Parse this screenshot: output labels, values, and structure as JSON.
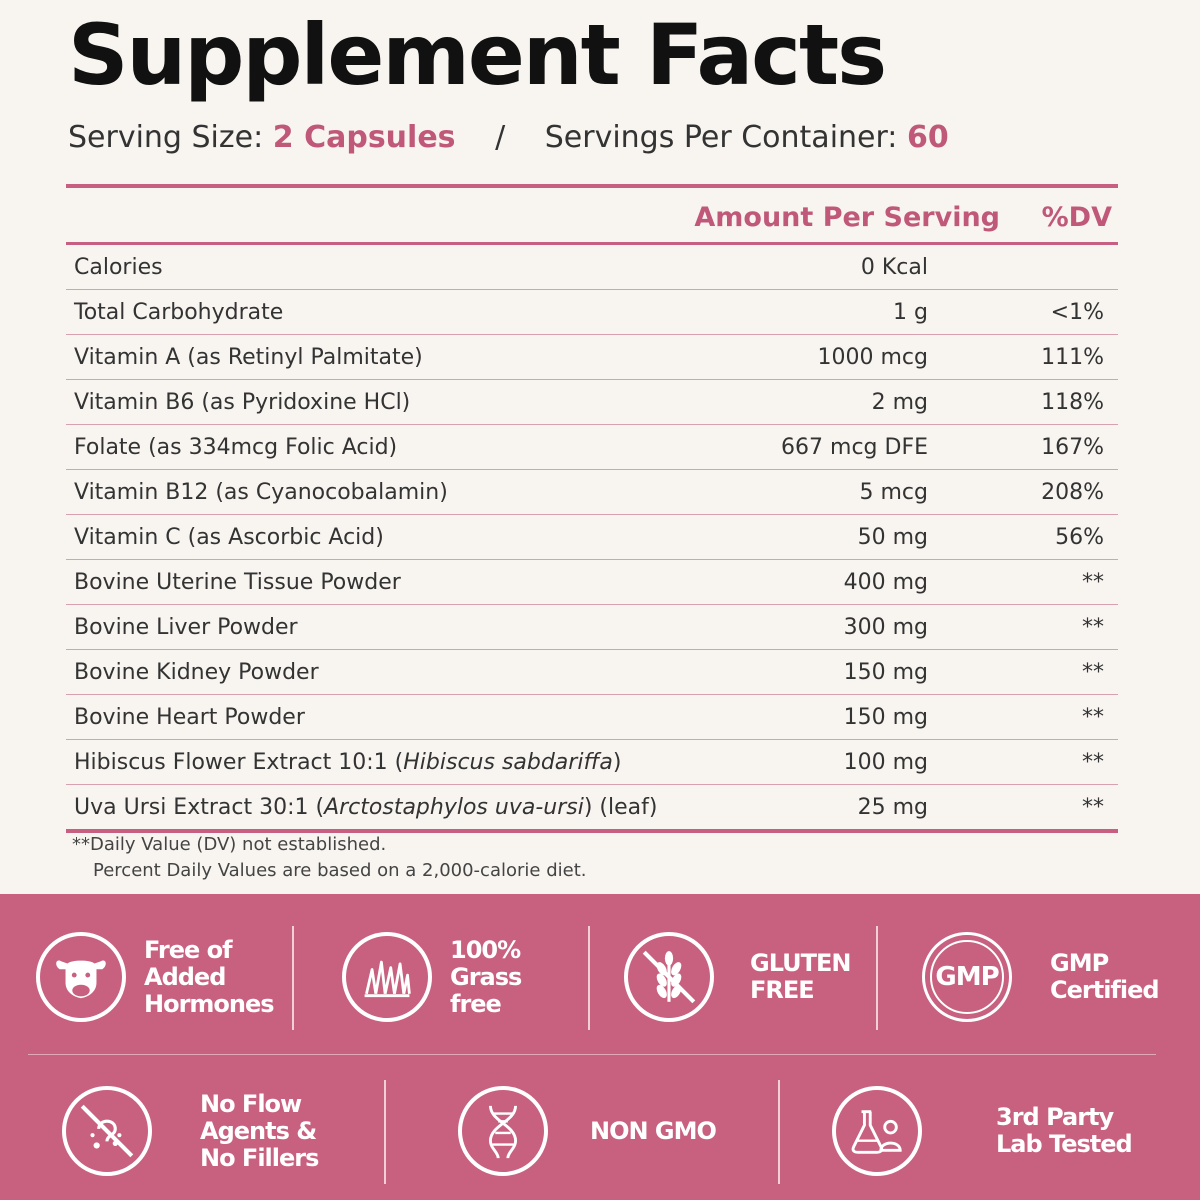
{
  "title": "Supplement Facts",
  "serving": {
    "size_label": "Serving Size:",
    "size_value": "2 Capsules",
    "separator": "/",
    "per_container_label": "Servings Per Container:",
    "per_container_value": "60"
  },
  "table": {
    "header_amount": "Amount Per Serving",
    "header_dv": "%DV",
    "rows": [
      {
        "name": "Calories",
        "italic": "",
        "tail": "",
        "amount": "0 Kcal",
        "dv": ""
      },
      {
        "name": "Total Carbohydrate",
        "italic": "",
        "tail": "",
        "amount": "1 g",
        "dv": "<1%"
      },
      {
        "name": "Vitamin A (as Retinyl Palmitate)",
        "italic": "",
        "tail": "",
        "amount": "1000 mcg",
        "dv": "111%"
      },
      {
        "name": "Vitamin B6 (as Pyridoxine HCl)",
        "italic": "",
        "tail": "",
        "amount": "2 mg",
        "dv": "118%"
      },
      {
        "name": "Folate (as 334mcg Folic Acid)",
        "italic": "",
        "tail": "",
        "amount": "667 mcg DFE",
        "dv": "167%"
      },
      {
        "name": "Vitamin B12 (as Cyanocobalamin)",
        "italic": "",
        "tail": "",
        "amount": "5 mcg",
        "dv": "208%"
      },
      {
        "name": "Vitamin C (as Ascorbic Acid)",
        "italic": "",
        "tail": "",
        "amount": "50 mg",
        "dv": "56%"
      },
      {
        "name": "Bovine Uterine Tissue Powder",
        "italic": "",
        "tail": "",
        "amount": "400 mg",
        "dv": "**"
      },
      {
        "name": "Bovine Liver Powder",
        "italic": "",
        "tail": "",
        "amount": "300 mg",
        "dv": "**"
      },
      {
        "name": "Bovine Kidney Powder",
        "italic": "",
        "tail": "",
        "amount": "150 mg",
        "dv": "**"
      },
      {
        "name": "Bovine Heart Powder",
        "italic": "",
        "tail": "",
        "amount": "150 mg",
        "dv": "**"
      },
      {
        "name": "Hibiscus Flower Extract 10:1 (",
        "italic": "Hibiscus sabdariffa",
        "tail": ")",
        "amount": "100 mg",
        "dv": "**"
      },
      {
        "name": "Uva Ursi Extract 30:1 (",
        "italic": "Arctostaphylos uva-ursi",
        "tail": ") (leaf)",
        "amount": "25 mg",
        "dv": "**"
      }
    ]
  },
  "notes": {
    "line1": "**Daily Value (DV) not established.",
    "line2": "Percent Daily Values are based on a 2,000-calorie diet."
  },
  "badges": [
    {
      "icon": "cow-icon",
      "label": "Free of\nAdded\nHormones"
    },
    {
      "icon": "grass-icon",
      "label": "100%\nGrass\nfree"
    },
    {
      "icon": "gluten-free-icon",
      "label": "GLUTEN\nFREE"
    },
    {
      "icon": "gmp-icon",
      "icon_text": "GMP",
      "label": "GMP\nCertified"
    },
    {
      "icon": "no-fillers-icon",
      "label": "No Flow\nAgents &\nNo Fillers"
    },
    {
      "icon": "dna-icon",
      "label": "NON GMO"
    },
    {
      "icon": "lab-test-icon",
      "label": "3rd Party\nLab Tested"
    }
  ],
  "colors": {
    "accent": "#c65f82",
    "band": "#c8617f",
    "background": "#f8f5f1"
  }
}
